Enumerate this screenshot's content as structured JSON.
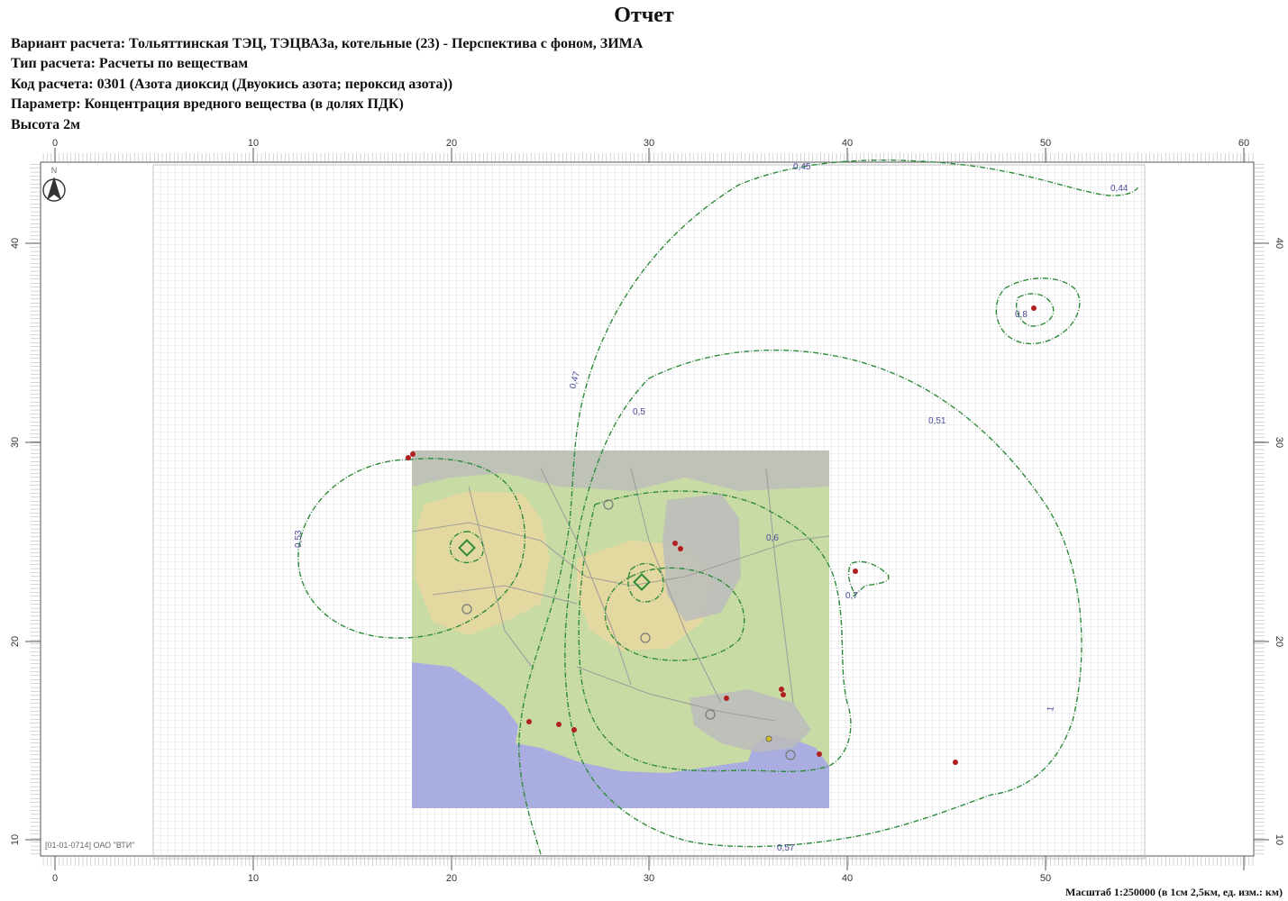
{
  "title": "Отчет",
  "info": {
    "variant": "Вариант расчета: Тольяттинская ТЭЦ, ТЭЦВАЗа, котельные (23) - Перспектива с фоном, ЗИМА",
    "calc_type": "Тип расчета: Расчеты по веществам",
    "calc_code": "Код расчета: 0301 (Азота диоксид (Двуокись азота; пероксид азота))",
    "parameter": "Параметр: Концентрация вредного вещества (в долях ПДК)",
    "height": "Высота 2м"
  },
  "map": {
    "x_ticks": [
      "0",
      "10",
      "20",
      "30",
      "40",
      "50",
      "60"
    ],
    "y_ticks": [
      "10",
      "20",
      "30",
      "40"
    ],
    "north_label": "N",
    "signature": "[01-01-0714] ОАО \"ВТИ\"",
    "scale": "Масштаб 1:250000 (в 1см 2,5км, ед. изм.: км)",
    "isoline_labels": [
      "0,45",
      "0,44",
      "0,47",
      "0,5",
      "0,51",
      "0,53",
      "0,6",
      "0,7",
      "0,8",
      "1",
      "0,57"
    ],
    "colors": {
      "isoline": "#2e8b3a",
      "grid": "#c8c8c8",
      "water": "#a9addf",
      "land": "#c9dba5",
      "urban": "#e6d8a0",
      "industrial": "#bcbcbc",
      "source_marker": "#b02020"
    }
  }
}
